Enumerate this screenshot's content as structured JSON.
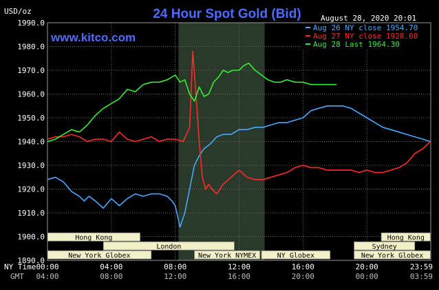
{
  "chart_data": {
    "type": "line",
    "title": "24 Hour Spot Gold (Bid)",
    "brand": "www.kitco.com",
    "unit_label": "USD/oz",
    "timestamp": "August 28, 2020 20:01",
    "ylim": [
      1890,
      1990
    ],
    "y_ticks": [
      "1990.0",
      "1980.0",
      "1970.0",
      "1960.0",
      "1950.0",
      "1940.0",
      "1930.0",
      "1920.0",
      "1910.0",
      "1900.0",
      "1890.0"
    ],
    "x_range": [
      0,
      24
    ],
    "x_ticks_ny": [
      "00:00",
      "04:00",
      "08:00",
      "12:00",
      "16:00",
      "20:00",
      "23:59"
    ],
    "x_ticks_gmt": [
      "04:00",
      "08:00",
      "12:00",
      "16:00",
      "20:00",
      "00:00",
      "03:59"
    ],
    "x_row_labels": [
      "NY Time",
      "GMT"
    ],
    "grid": true,
    "shaded_region": [
      8.2,
      13.6
    ],
    "legend_position": "top-right",
    "series": [
      {
        "name": "Aug 26 NY close 1954.70",
        "color": "#4aa8ff",
        "x": [
          0,
          0.5,
          1,
          1.5,
          2,
          2.3,
          2.6,
          3,
          3.5,
          4,
          4.5,
          5,
          5.5,
          6,
          6.5,
          7,
          7.5,
          7.8,
          8,
          8.3,
          8.6,
          8.9,
          9.2,
          9.5,
          9.8,
          10.2,
          10.6,
          11,
          11.5,
          12,
          12.5,
          13,
          13.5,
          14,
          14.5,
          15,
          15.5,
          16,
          16.5,
          17,
          17.5,
          18,
          18.5,
          19,
          19.5,
          20,
          20.5,
          21,
          21.5,
          22,
          22.5,
          23,
          23.5,
          23.98
        ],
        "y": [
          1924,
          1925,
          1923,
          1919,
          1917,
          1915,
          1917,
          1915,
          1912,
          1916,
          1913,
          1916,
          1918,
          1917,
          1918,
          1918,
          1917,
          1915,
          1913,
          1904,
          1910,
          1920,
          1930,
          1934,
          1937,
          1939,
          1942,
          1943,
          1943,
          1945,
          1945,
          1946,
          1946,
          1947,
          1948,
          1948,
          1949,
          1950,
          1953,
          1954,
          1955,
          1955,
          1955,
          1954,
          1952,
          1950,
          1948,
          1946,
          1945,
          1944,
          1943,
          1942,
          1941,
          1940
        ]
      },
      {
        "name": "Aug 27 NY close 1928.60",
        "color": "#ff2a2a",
        "x": [
          0,
          0.5,
          1,
          1.5,
          2,
          2.5,
          3,
          3.5,
          4,
          4.5,
          5,
          5.5,
          6,
          6.5,
          7,
          7.5,
          8,
          8.5,
          8.9,
          9.1,
          9.3,
          9.5,
          9.7,
          9.9,
          10.1,
          10.3,
          10.6,
          11,
          11.5,
          12,
          12.5,
          13,
          13.5,
          14,
          14.5,
          15,
          15.5,
          16,
          16.5,
          17,
          17.5,
          18,
          18.5,
          19,
          19.5,
          20,
          20.5,
          21,
          21.5,
          22,
          22.5,
          23,
          23.5,
          23.98
        ],
        "y": [
          1941,
          1942,
          1942,
          1943,
          1942,
          1940,
          1941,
          1941,
          1940,
          1944,
          1941,
          1940,
          1941,
          1942,
          1940,
          1941,
          1941,
          1940,
          1946,
          1978,
          1960,
          1940,
          1925,
          1920,
          1922,
          1920,
          1918,
          1922,
          1925,
          1928,
          1925,
          1924,
          1924,
          1925,
          1926,
          1927,
          1929,
          1930,
          1929,
          1929,
          1928,
          1928,
          1928,
          1928,
          1927,
          1928,
          1927,
          1927,
          1928,
          1929,
          1931,
          1935,
          1937,
          1940
        ]
      },
      {
        "name": "Aug 28 Last 1964.30",
        "color": "#33ee33",
        "x": [
          0,
          0.5,
          1,
          1.5,
          2,
          2.5,
          3,
          3.5,
          4,
          4.5,
          5,
          5.5,
          6,
          6.5,
          7,
          7.5,
          8,
          8.3,
          8.6,
          8.9,
          9.2,
          9.5,
          9.8,
          10.1,
          10.4,
          10.7,
          11,
          11.3,
          11.6,
          12,
          12.3,
          12.6,
          13,
          13.4,
          13.8,
          14.2,
          14.6,
          15,
          15.5,
          16,
          16.5,
          17,
          17.5,
          18.1
        ],
        "y": [
          1940,
          1941,
          1943,
          1945,
          1944,
          1947,
          1951,
          1954,
          1956,
          1958,
          1962,
          1961,
          1964,
          1965,
          1965,
          1966,
          1968,
          1965,
          1966,
          1960,
          1957,
          1963,
          1959,
          1960,
          1965,
          1967,
          1970,
          1969,
          1970,
          1970,
          1972,
          1973,
          1970,
          1968,
          1966,
          1965,
          1965,
          1966,
          1965,
          1965,
          1964,
          1964,
          1964,
          1964
        ]
      }
    ],
    "sessions": [
      {
        "label": "Hong Kong",
        "start": 0,
        "end": 5.8,
        "row": 0
      },
      {
        "label": "London",
        "start": 3.5,
        "end": 11.7,
        "row": 1
      },
      {
        "label": "New York Globex",
        "start": 0,
        "end": 6.5,
        "row": 2
      },
      {
        "label": "New York NYMEX",
        "start": 9.2,
        "end": 13.3,
        "row": 2
      },
      {
        "label": "NY Globex",
        "start": 13.4,
        "end": 17.7,
        "row": 2
      },
      {
        "label": "Hong Kong",
        "start": 20.9,
        "end": 23.98,
        "row": 0
      },
      {
        "label": "Sydney",
        "start": 19.2,
        "end": 23.0,
        "row": 1
      },
      {
        "label": "New York Globex",
        "start": 19.2,
        "end": 23.98,
        "row": 2
      }
    ],
    "colors": {
      "background": "#000000",
      "grid": "#6b6b6b",
      "shade": "#2a3a2a",
      "title": "#4f6bff",
      "session_box": "#f2f0c8"
    }
  }
}
